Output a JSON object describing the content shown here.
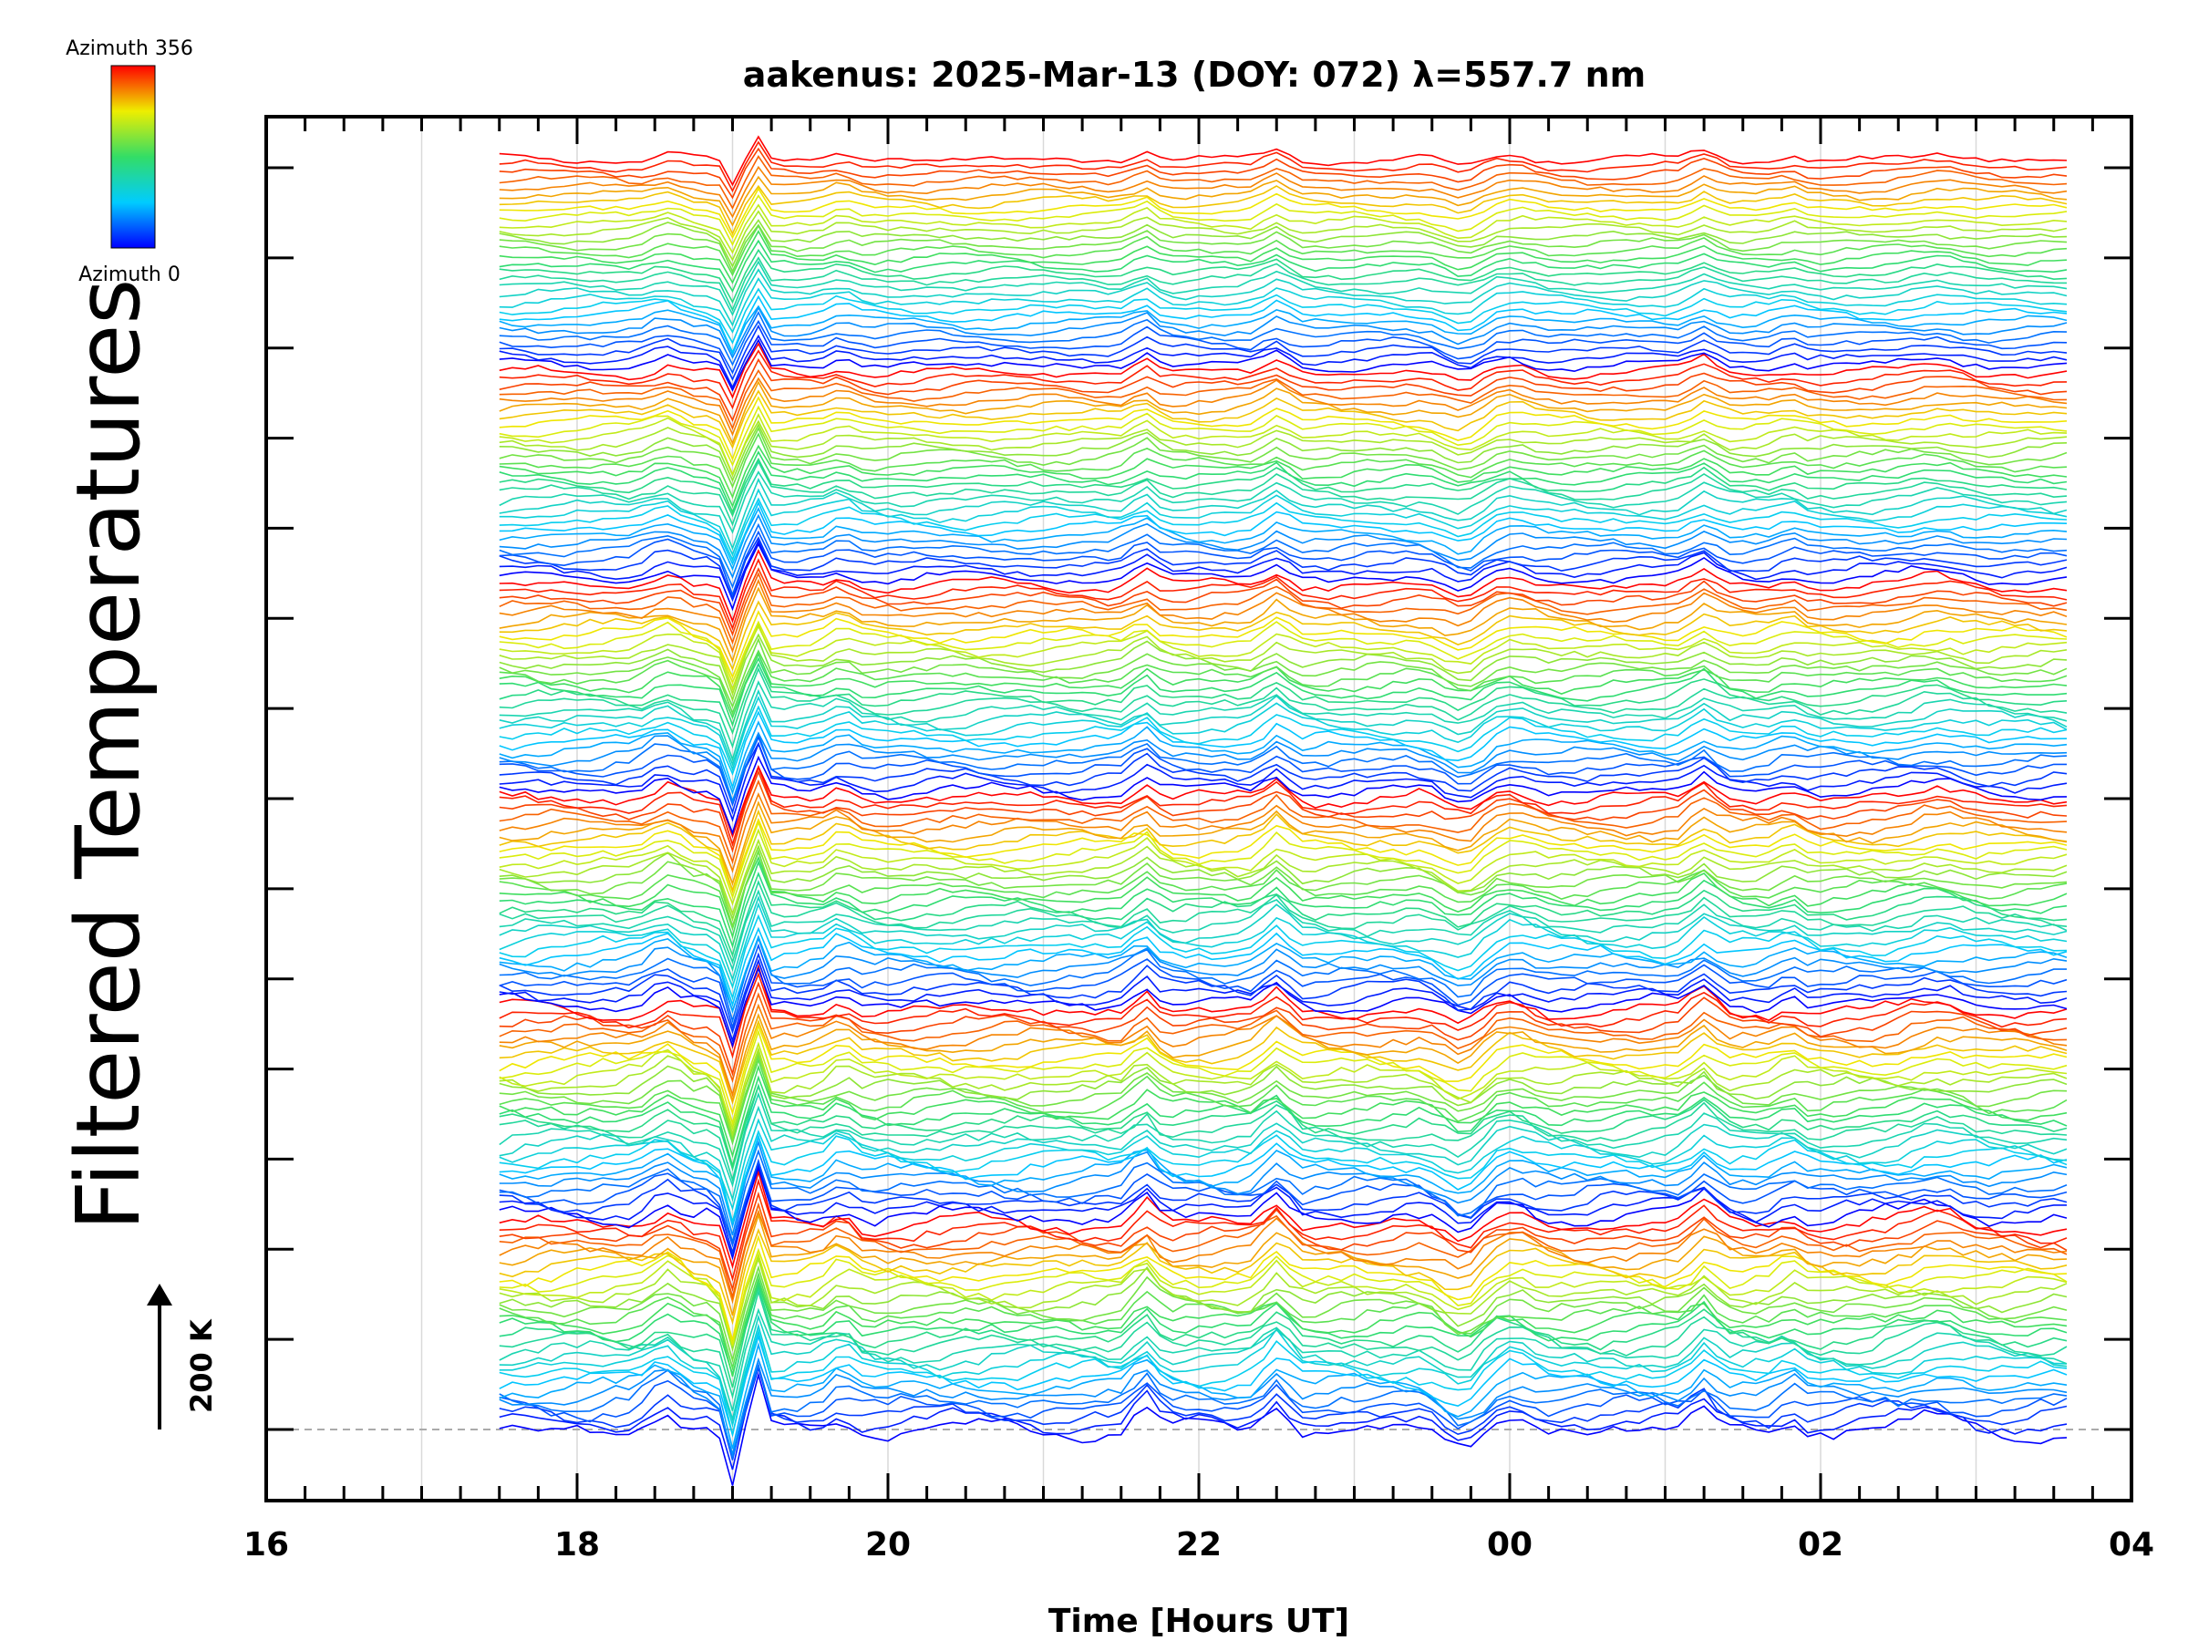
{
  "chart_data": {
    "type": "line",
    "title": "aakenus: 2025-Mar-13 (DOY: 072) λ=557.7 nm",
    "xlabel": "Time [Hours UT]",
    "ylabel": "Filtered Temperatures",
    "x_range_hours": [
      16,
      28
    ],
    "x_ticks": [
      "16",
      "18",
      "20",
      "22",
      "00",
      "02",
      "04"
    ],
    "data_x_range_hours": [
      17.5,
      27.6
    ],
    "scale_label": "200 K",
    "grid": true,
    "colorbar": {
      "top_label": "Azimuth  356",
      "bottom_label": "Azimuth  0"
    },
    "series_count": 180,
    "series_order": "stacked, bottom-to-top, azimuth cycling 0 to 356 per group",
    "azimuth_groups": 6,
    "events_hours": [
      19.0,
      19.15,
      21.65,
      22.5,
      23.7,
      24.0,
      25.25,
      25.8
    ],
    "colors": {
      "axis": "#000000",
      "grid": "#d9d9d9"
    }
  }
}
